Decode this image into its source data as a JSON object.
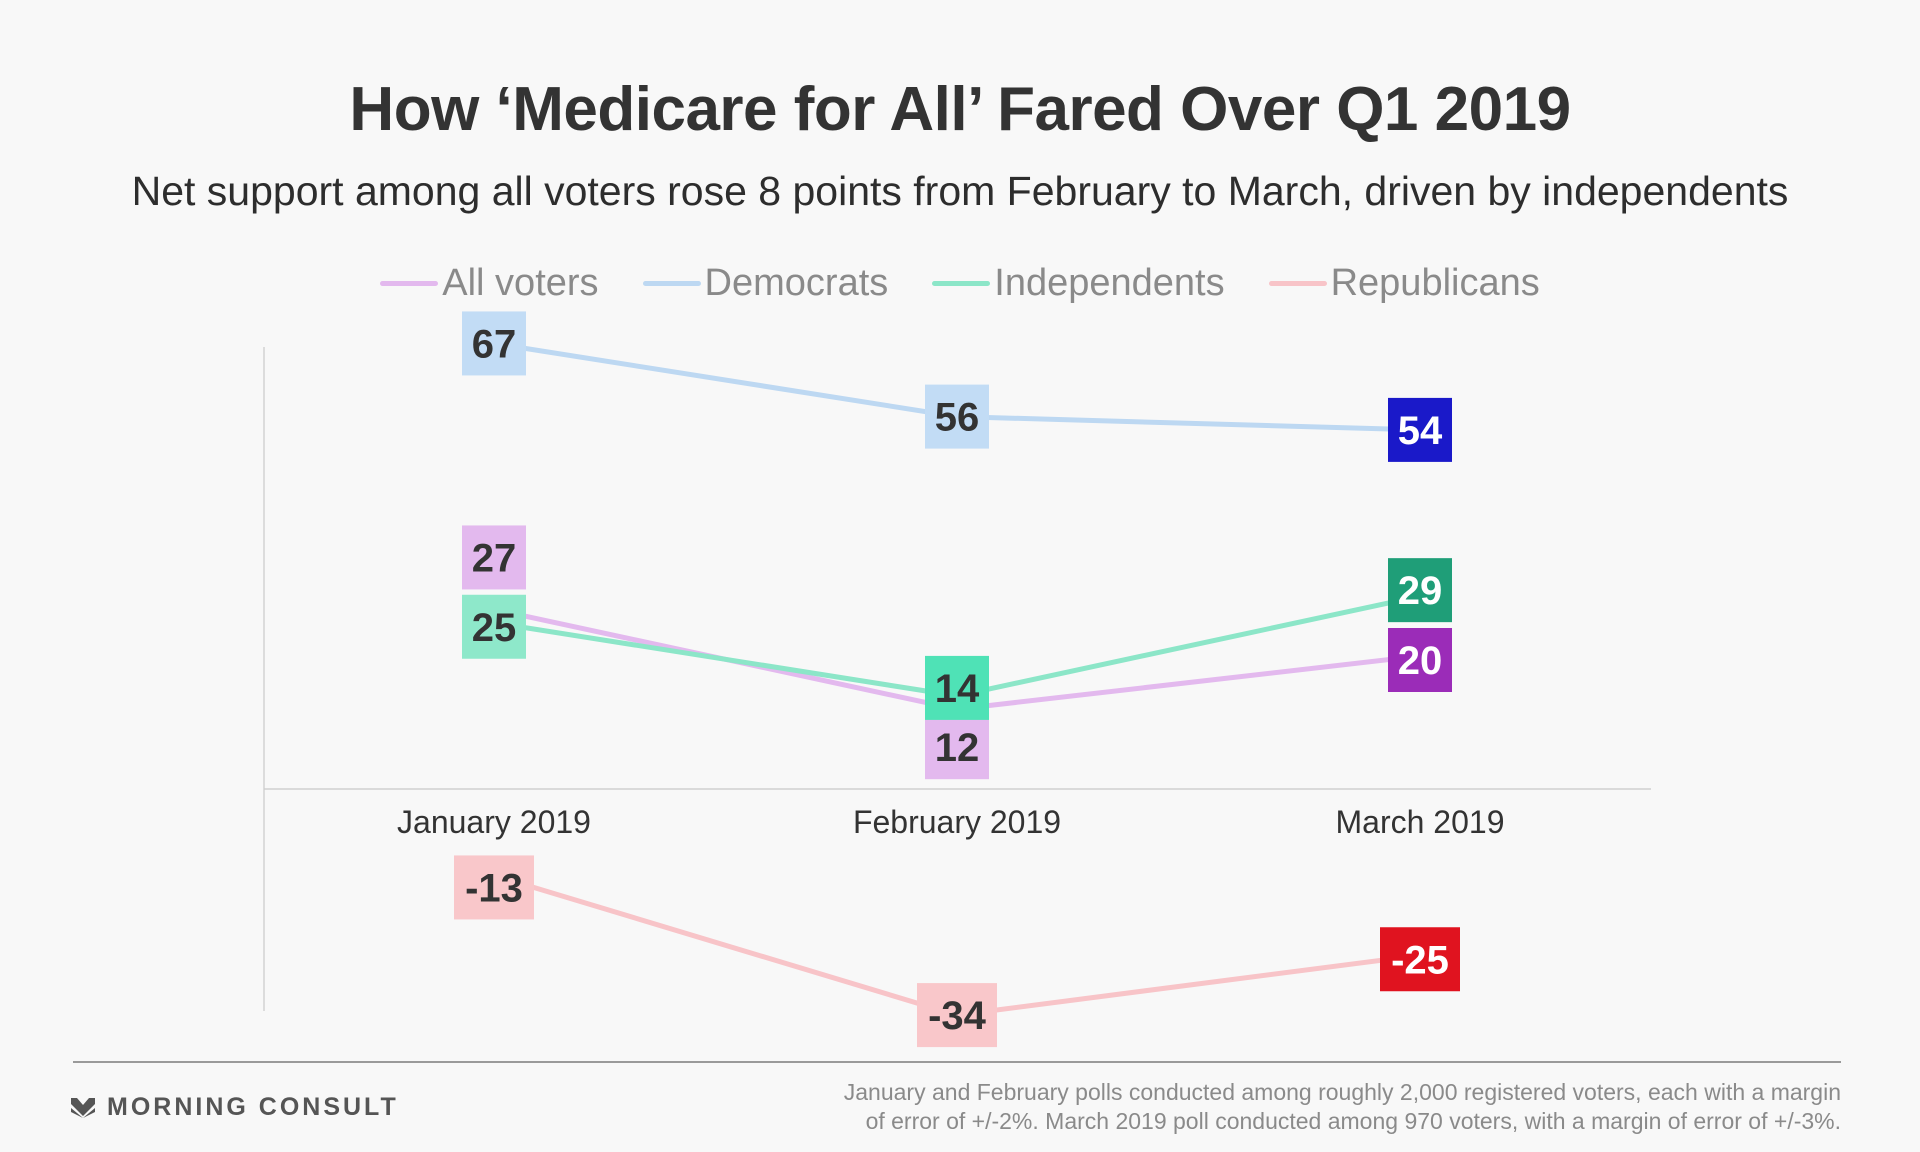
{
  "header": {
    "title": "How ‘Medicare for All’ Fared Over Q1 2019",
    "subtitle": "Net support among all voters rose 8 points from February to March, driven by independents"
  },
  "chart_data": {
    "type": "line",
    "title": "How ‘Medicare for All’ Fared Over Q1 2019",
    "subtitle": "Net support among all voters rose 8 points from February to March, driven by independents",
    "categories": [
      "January 2019",
      "February 2019",
      "March 2019"
    ],
    "ylim": [
      -40,
      75
    ],
    "grid": false,
    "legend_position": "top",
    "series": [
      {
        "name": "All voters",
        "values": [
          27,
          12,
          20
        ],
        "line_color": "#e3b9ee",
        "label_color": "#e3b9ee",
        "highlight_color": "#9b2cb8",
        "label_text_color": "#333333",
        "highlight_text_color": "#ffffff"
      },
      {
        "name": "Democrats",
        "values": [
          67,
          56,
          54
        ],
        "line_color": "#bdd8f2",
        "label_color": "#c2dcf5",
        "highlight_color": "#1a19c9",
        "label_text_color": "#333333",
        "highlight_text_color": "#ffffff"
      },
      {
        "name": "Independents",
        "values": [
          25,
          14,
          29
        ],
        "line_color": "#8ce6c8",
        "label_color": "#8ee8ca",
        "highlight_color": "#1f9e78",
        "label_text_color": "#333333",
        "highlight_text_color": "#ffffff"
      },
      {
        "name": "Republicans",
        "values": [
          -13,
          -34,
          -25
        ],
        "line_color": "#f8c4c8",
        "label_color": "#f9c7ca",
        "highlight_color": "#e0131f",
        "label_text_color": "#333333",
        "highlight_text_color": "#ffffff"
      }
    ],
    "highlight_colors_by_point": {
      "Independents": [
        "#8ee8ca",
        "#4fe2b6",
        "#1f9e78"
      ]
    }
  },
  "footer": {
    "brand": "MORNING CONSULT",
    "note_line1": "January and February polls conducted among roughly 2,000 registered voters, each with a margin",
    "note_line2": "of error of +/-2%. March 2019 poll conducted among 970 voters, with a margin of error of +/-3%."
  }
}
